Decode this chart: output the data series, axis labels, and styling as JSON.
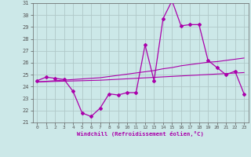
{
  "hours": [
    0,
    1,
    2,
    3,
    4,
    5,
    6,
    7,
    8,
    9,
    10,
    11,
    12,
    13,
    14,
    15,
    16,
    17,
    18,
    19,
    20,
    21,
    22,
    23
  ],
  "windchill": [
    24.5,
    24.8,
    24.7,
    24.6,
    23.6,
    21.8,
    21.5,
    22.2,
    23.4,
    23.3,
    23.5,
    23.5,
    27.5,
    24.5,
    29.7,
    31.2,
    29.1,
    29.2,
    29.2,
    26.2,
    25.6,
    25.0,
    25.3,
    23.4
  ],
  "trend1": [
    24.4,
    24.45,
    24.5,
    24.55,
    24.6,
    24.65,
    24.7,
    24.75,
    24.85,
    24.95,
    25.05,
    25.15,
    25.25,
    25.35,
    25.5,
    25.6,
    25.75,
    25.85,
    25.95,
    26.05,
    26.1,
    26.2,
    26.3,
    26.4
  ],
  "trend2": [
    24.4,
    24.42,
    24.44,
    24.46,
    24.48,
    24.5,
    24.52,
    24.54,
    24.58,
    24.62,
    24.66,
    24.7,
    24.74,
    24.78,
    24.82,
    24.86,
    24.9,
    24.94,
    24.98,
    25.02,
    25.06,
    25.1,
    25.14,
    25.18
  ],
  "line_color": "#aa00aa",
  "bg_color": "#cce8e8",
  "grid_color": "#b0c8c8",
  "xlabel": "Windchill (Refroidissement éolien,°C)",
  "ylim": [
    21,
    31
  ],
  "xlim": [
    -0.5,
    23.5
  ],
  "yticks": [
    21,
    22,
    23,
    24,
    25,
    26,
    27,
    28,
    29,
    30,
    31
  ],
  "xticks": [
    0,
    1,
    2,
    3,
    4,
    5,
    6,
    7,
    8,
    9,
    10,
    11,
    12,
    13,
    14,
    15,
    16,
    17,
    18,
    19,
    20,
    21,
    22,
    23
  ]
}
